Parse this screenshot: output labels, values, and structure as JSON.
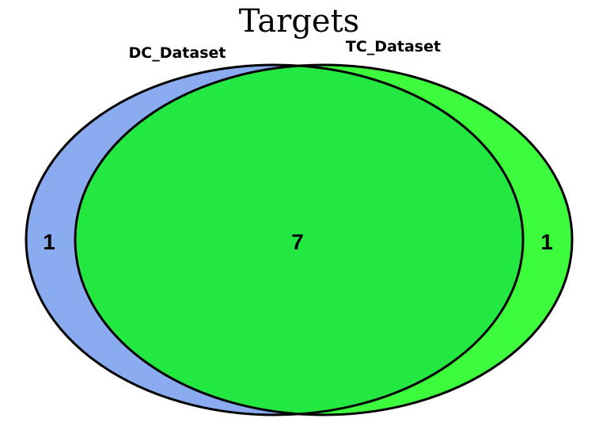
{
  "title": "Targets",
  "sets": [
    {
      "name": "DC_Dataset",
      "color": "#8aabf0"
    },
    {
      "name": "TC_Dataset",
      "color": "#3dfb3d"
    }
  ],
  "overlap_color": "#24e842",
  "counts": {
    "dc_only": "1",
    "both": "7",
    "tc_only": "1"
  }
}
